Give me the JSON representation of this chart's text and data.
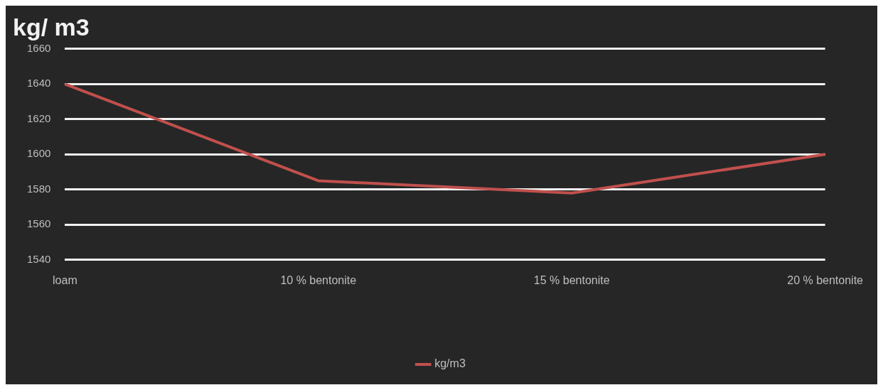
{
  "chart_data": {
    "type": "line",
    "title": "kg/ m3",
    "categories": [
      "loam",
      "10 % bentonite",
      "15 % bentonite",
      "20 % bentonite"
    ],
    "series": [
      {
        "name": "kg/m3",
        "color": "#c0504d",
        "values": [
          1640,
          1585,
          1578,
          1600
        ]
      }
    ],
    "ylim": [
      1540,
      1660
    ],
    "yticks": [
      1540,
      1560,
      1580,
      1600,
      1620,
      1640,
      1660
    ],
    "grid": "y",
    "legend": "bottom",
    "marker": "none",
    "line_style": "solid"
  }
}
